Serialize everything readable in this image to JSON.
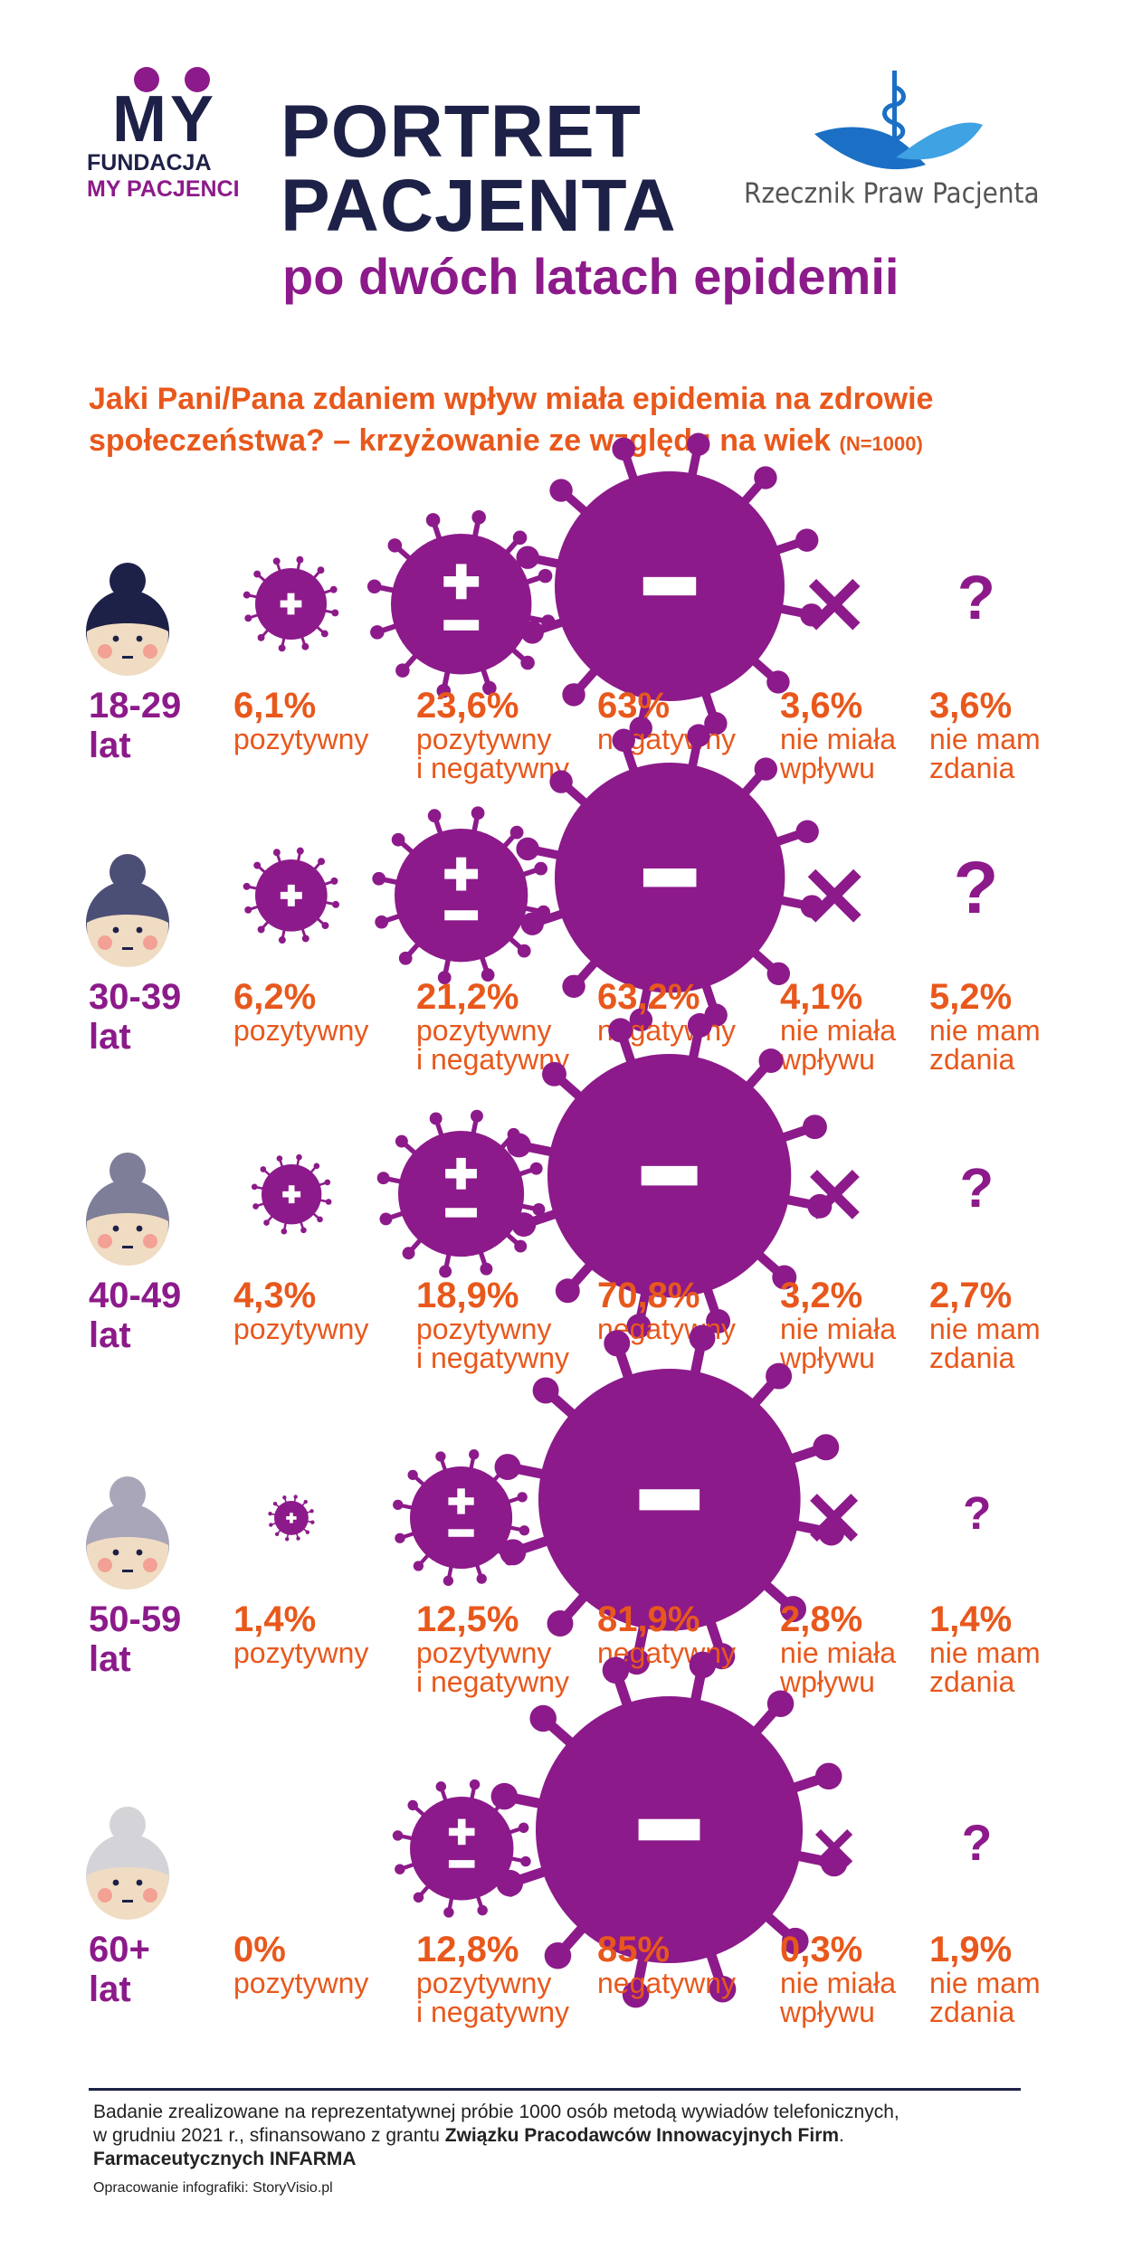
{
  "header": {
    "brand_main": "MY",
    "brand_line1": "FUNDACJA",
    "brand_line2": "MY PACJENCI",
    "title_line1": "PORTRET",
    "title_line2": "PACJENTA",
    "subtitle": "po dwóch latach epidemii",
    "partner_name": "Rzecznik Praw Pacjenta"
  },
  "question": {
    "line1": "Jaki Pani/Pana zdaniem wpływ miała epidemia na zdrowie",
    "line2": "społeczeństwa? – krzyżowanie ze względu na wiek",
    "sample": "(N=1000)"
  },
  "labels": {
    "positive": "pozytywny",
    "mixed_line1": "pozytywny",
    "mixed_line2": "i negatywny",
    "negative": "negatywny",
    "no_effect_line1": "nie miała",
    "no_effect_line2": "wpływu",
    "no_opinion_line1": "nie mam",
    "no_opinion_line2": "zdania",
    "age_unit": "lat"
  },
  "chart_data": {
    "type": "table",
    "columns": [
      "pozytywny",
      "pozytywny i negatywny",
      "negatywny",
      "nie miała wpływu",
      "nie mam zdania"
    ],
    "rows": [
      {
        "age": "18-29",
        "values": [
          6.1,
          23.6,
          63,
          3.6,
          3.6
        ],
        "labels": [
          "6,1%",
          "23,6%",
          "63%",
          "3,6%",
          "3,6%"
        ]
      },
      {
        "age": "30-39",
        "values": [
          6.2,
          21.2,
          63.2,
          4.1,
          5.2
        ],
        "labels": [
          "6,2%",
          "21,2%",
          "63,2%",
          "4,1%",
          "5,2%"
        ]
      },
      {
        "age": "40-49",
        "values": [
          4.3,
          18.9,
          70.8,
          3.2,
          2.7
        ],
        "labels": [
          "4,3%",
          "18,9%",
          "70,8%",
          "3,2%",
          "2,7%"
        ]
      },
      {
        "age": "50-59",
        "values": [
          1.4,
          12.5,
          81.9,
          2.8,
          1.4
        ],
        "labels": [
          "1,4%",
          "12,5%",
          "81,9%",
          "2,8%",
          "1,4%"
        ]
      },
      {
        "age": "60+",
        "values": [
          0,
          12.8,
          85,
          0.3,
          1.9
        ],
        "labels": [
          "0%",
          "12,8%",
          "85%",
          "0,3%",
          "1,9%"
        ]
      }
    ]
  },
  "colors": {
    "navy": "#1e2147",
    "purple": "#8c1a8a",
    "orange": "#e8581c",
    "hair": [
      "#1e2147",
      "#4c4f75",
      "#7f7e98",
      "#a8a6b8",
      "#d4d4d8"
    ],
    "skin": "#f0dcc3",
    "cheek": "#f2a194",
    "partner_blue": "#1b6fc4"
  },
  "footer": {
    "text_part1": "Badanie zrealizowane na reprezentatywnej próbie 1000 osób metodą wywiadów telefonicznych,",
    "text_part2": "w grudniu 2021 r., sfinansowano z grantu",
    "text_bold1": "Związku Pracodawców Innowacyjnych Firm",
    "text_period": ".",
    "text_bold2": "Farmaceutycznych INFARMA",
    "credit": "Opracowanie infografiki: StoryVisio.pl"
  }
}
